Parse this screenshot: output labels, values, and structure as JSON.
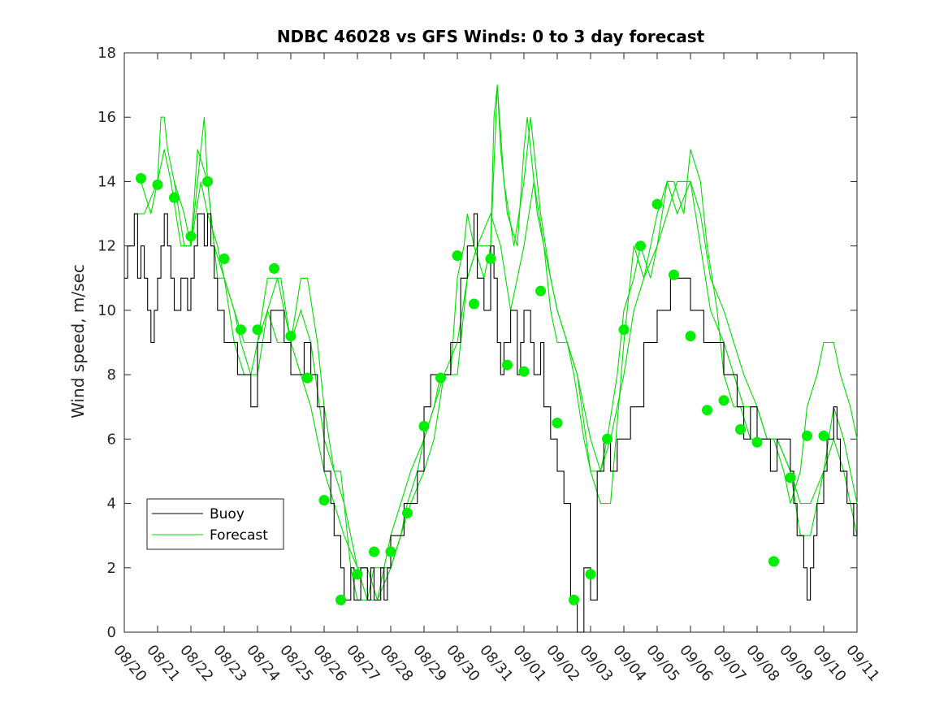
{
  "chart_data": {
    "type": "line",
    "title": "NDBC 46028 vs GFS Winds: 0 to 3 day forecast",
    "xlabel": "",
    "ylabel": "Wind speed, m/sec",
    "x_unit": "date (day index, 0 = 08/20)",
    "xlim": [
      0,
      22
    ],
    "ylim": [
      0,
      18
    ],
    "x_ticks": [
      {
        "value": 0,
        "label": "08/20"
      },
      {
        "value": 1,
        "label": "08/21"
      },
      {
        "value": 2,
        "label": "08/22"
      },
      {
        "value": 3,
        "label": "08/23"
      },
      {
        "value": 4,
        "label": "08/24"
      },
      {
        "value": 5,
        "label": "08/25"
      },
      {
        "value": 6,
        "label": "08/26"
      },
      {
        "value": 7,
        "label": "08/27"
      },
      {
        "value": 8,
        "label": "08/28"
      },
      {
        "value": 9,
        "label": "08/29"
      },
      {
        "value": 10,
        "label": "08/30"
      },
      {
        "value": 11,
        "label": "08/31"
      },
      {
        "value": 12,
        "label": "09/01"
      },
      {
        "value": 13,
        "label": "09/02"
      },
      {
        "value": 14,
        "label": "09/03"
      },
      {
        "value": 15,
        "label": "09/04"
      },
      {
        "value": 16,
        "label": "09/05"
      },
      {
        "value": 17,
        "label": "09/06"
      },
      {
        "value": 18,
        "label": "09/07"
      },
      {
        "value": 19,
        "label": "09/08"
      },
      {
        "value": 20,
        "label": "09/09"
      },
      {
        "value": 21,
        "label": "09/10"
      },
      {
        "value": 22,
        "label": "09/11"
      }
    ],
    "y_ticks": [
      {
        "value": 0,
        "label": "0"
      },
      {
        "value": 2,
        "label": "2"
      },
      {
        "value": 4,
        "label": "4"
      },
      {
        "value": 6,
        "label": "6"
      },
      {
        "value": 8,
        "label": "8"
      },
      {
        "value": 10,
        "label": "10"
      },
      {
        "value": 12,
        "label": "12"
      },
      {
        "value": 14,
        "label": "14"
      },
      {
        "value": 16,
        "label": "16"
      },
      {
        "value": 18,
        "label": "18"
      }
    ],
    "legend": {
      "position": "lower-left",
      "entries": [
        {
          "name": "Buoy",
          "color": "#000000"
        },
        {
          "name": "Forecast",
          "color": "#00dd00"
        }
      ]
    },
    "grid": false,
    "series": [
      {
        "name": "Buoy",
        "color": "#000000",
        "style": "step",
        "x": [
          0,
          0.1,
          0.2,
          0.3,
          0.4,
          0.5,
          0.6,
          0.7,
          0.8,
          0.9,
          1.0,
          1.1,
          1.2,
          1.3,
          1.4,
          1.5,
          1.6,
          1.7,
          1.8,
          1.9,
          2.0,
          2.1,
          2.2,
          2.3,
          2.4,
          2.5,
          2.6,
          2.7,
          2.8,
          2.9,
          3.0,
          3.2,
          3.4,
          3.6,
          3.8,
          4.0,
          4.2,
          4.4,
          4.6,
          4.8,
          5.0,
          5.2,
          5.4,
          5.6,
          5.8,
          6.0,
          6.1,
          6.2,
          6.3,
          6.4,
          6.5,
          6.6,
          6.7,
          6.8,
          6.9,
          7.0,
          7.1,
          7.2,
          7.3,
          7.4,
          7.5,
          7.6,
          7.7,
          7.8,
          7.9,
          8.0,
          8.2,
          8.4,
          8.6,
          8.8,
          9.0,
          9.2,
          9.4,
          9.6,
          9.8,
          10.0,
          10.1,
          10.2,
          10.3,
          10.4,
          10.5,
          10.6,
          10.7,
          10.8,
          10.9,
          11.0,
          11.1,
          11.2,
          11.3,
          11.4,
          11.5,
          11.6,
          11.7,
          11.8,
          11.9,
          12.0,
          12.1,
          12.2,
          12.3,
          12.4,
          12.5,
          12.6,
          12.7,
          12.8,
          12.9,
          13.0,
          13.2,
          13.4,
          13.6,
          13.8,
          14.0,
          14.2,
          14.4,
          14.6,
          14.8,
          15.0,
          15.2,
          15.4,
          15.6,
          15.8,
          16.0,
          16.2,
          16.4,
          16.6,
          16.8,
          17.0,
          17.2,
          17.4,
          17.6,
          17.8,
          18.0,
          18.2,
          18.4,
          18.6,
          18.8,
          19.0,
          19.2,
          19.4,
          19.6,
          19.8,
          20.0,
          20.1,
          20.2,
          20.3,
          20.4,
          20.5,
          20.6,
          20.7,
          20.8,
          20.9,
          21.0,
          21.1,
          21.2,
          21.3,
          21.4,
          21.5,
          21.6,
          21.7,
          21.8,
          21.9,
          22.0
        ],
        "y": [
          11,
          12,
          12,
          13,
          11,
          12,
          11,
          10,
          9,
          10,
          11,
          12,
          13,
          12,
          11,
          10,
          10,
          11,
          11,
          10,
          11,
          12,
          13,
          13,
          12,
          13,
          12,
          11,
          10,
          10,
          9,
          9,
          8,
          8,
          7,
          9,
          9,
          10,
          10,
          9,
          8,
          8,
          9,
          8,
          7,
          5,
          5,
          4,
          3,
          3,
          2,
          1,
          1,
          2,
          1,
          1,
          2,
          2,
          1,
          2,
          1,
          1,
          2,
          1,
          2,
          3,
          3,
          4,
          4,
          5,
          7,
          8,
          8,
          8,
          9,
          9,
          11,
          11,
          12,
          12,
          13,
          11,
          11,
          10,
          10,
          12,
          11,
          9,
          8,
          9,
          9,
          10,
          10,
          8,
          9,
          10,
          10,
          9,
          8,
          8,
          9,
          7,
          7,
          6,
          6,
          5,
          4,
          1,
          0,
          2,
          1,
          5,
          6,
          5,
          6,
          6,
          7,
          7,
          9,
          9,
          10,
          10,
          11,
          11,
          11,
          10,
          10,
          9,
          9,
          9,
          8,
          8,
          7,
          6,
          7,
          6,
          6,
          5,
          6,
          6,
          5,
          4,
          3,
          3,
          2,
          1,
          2,
          3,
          4,
          4,
          5,
          6,
          6,
          7,
          6,
          5,
          5,
          4,
          4,
          3,
          4
        ]
      },
      {
        "name": "Forecast",
        "color": "#00dd00",
        "x": [
          0.5,
          0.8,
          1.0,
          1.1,
          1.2,
          1.3,
          1.5,
          1.8,
          2.0,
          2.2,
          2.3,
          2.4,
          2.5,
          2.7,
          3.0,
          3.3,
          3.5,
          3.8,
          4.0,
          4.3,
          4.5,
          4.7,
          5.0,
          5.3,
          5.5,
          5.8,
          6.0,
          6.3,
          6.5,
          6.8,
          7.0,
          7.3,
          7.5,
          7.8,
          8.0,
          8.3,
          8.5,
          8.8,
          9.0,
          9.3,
          9.5,
          9.8,
          10.0,
          10.2,
          10.3,
          10.5,
          10.8,
          11.0,
          11.1,
          11.2,
          11.3,
          11.5,
          11.8,
          12.0,
          12.1,
          12.2,
          12.4,
          12.6,
          12.8,
          13.0,
          13.3,
          13.5,
          13.8,
          14.0,
          14.3,
          14.5,
          14.8,
          15.0,
          15.3,
          15.5,
          15.8,
          16.0,
          16.3,
          16.5,
          16.8,
          17.0,
          17.3,
          17.5,
          17.8,
          18.0,
          18.3,
          18.5,
          18.8,
          19.0,
          19.3,
          19.5,
          19.8,
          20.0,
          20.3,
          20.5,
          20.8,
          21.0,
          21.3,
          21.5,
          21.8,
          22.0
        ],
        "y": [
          14,
          13,
          14,
          16,
          16,
          15,
          14,
          13,
          12,
          14,
          15,
          16,
          14,
          12,
          11,
          10,
          9,
          8,
          9,
          11,
          11,
          11,
          9,
          11,
          11,
          9,
          7,
          5,
          5,
          2,
          1,
          1,
          2,
          2,
          2,
          3,
          4,
          5,
          6,
          7,
          8,
          8,
          11,
          12,
          13,
          12,
          11,
          12,
          16,
          17,
          15,
          13,
          12,
          15,
          16,
          15,
          13,
          12,
          10,
          9,
          9,
          8,
          6,
          5,
          5,
          6,
          8,
          10,
          11,
          12,
          11,
          12,
          14,
          14,
          13,
          15,
          14,
          12,
          10,
          8,
          7,
          7,
          6,
          6,
          6,
          6,
          5,
          4,
          5,
          7,
          8,
          9,
          9,
          8,
          7,
          6
        ]
      },
      {
        "name": "Forecast",
        "color": "#00dd00",
        "x": [
          0.3,
          0.6,
          1.0,
          1.2,
          1.4,
          1.7,
          2.0,
          2.2,
          2.5,
          2.8,
          3.0,
          3.3,
          3.6,
          4.0,
          4.3,
          4.6,
          5.0,
          5.3,
          5.6,
          6.0,
          6.3,
          6.6,
          7.0,
          7.3,
          7.6,
          8.0,
          8.3,
          8.6,
          9.0,
          9.3,
          9.6,
          10.0,
          10.3,
          10.6,
          11.0,
          11.2,
          11.4,
          11.7,
          12.0,
          12.2,
          12.5,
          12.8,
          13.0,
          13.3,
          13.6,
          14.0,
          14.3,
          14.6,
          15.0,
          15.3,
          15.6,
          16.0,
          16.3,
          16.6,
          17.0,
          17.3,
          17.6,
          18.0,
          18.3,
          18.6,
          19.0,
          19.3,
          19.6,
          20.0,
          20.3,
          20.6,
          21.0,
          21.3,
          21.6,
          22.0
        ],
        "y": [
          13,
          13,
          14,
          15,
          14,
          12,
          12,
          15,
          14,
          11,
          11,
          10,
          9,
          9,
          10,
          11,
          9,
          10,
          9,
          6,
          5,
          4,
          2,
          2,
          1,
          3,
          4,
          5,
          6,
          7,
          8,
          8,
          11,
          12,
          12,
          17,
          14,
          12,
          14,
          16,
          13,
          11,
          10,
          9,
          8,
          5,
          4,
          4,
          9,
          12,
          11,
          13,
          14,
          13,
          14,
          13,
          11,
          10,
          9,
          8,
          7,
          6,
          6,
          5,
          3,
          3,
          5,
          7,
          6,
          4
        ]
      },
      {
        "name": "Forecast",
        "color": "#00dd00",
        "x": [
          1.5,
          1.8,
          2.0,
          2.3,
          2.5,
          2.8,
          3.0,
          3.3,
          3.6,
          4.0,
          4.3,
          4.6,
          5.0,
          5.3,
          5.6,
          6.0,
          6.3,
          6.6,
          7.0,
          7.3,
          7.6,
          8.0,
          8.3,
          8.6,
          9.0,
          9.3,
          9.6,
          10.0,
          10.3,
          10.6,
          11.0,
          11.3,
          11.6,
          12.0,
          12.3,
          12.6,
          13.0,
          13.3,
          13.6,
          14.0,
          14.3,
          14.6,
          15.0,
          15.3,
          15.6,
          16.0,
          16.3,
          16.6,
          17.0,
          17.3,
          17.6,
          18.0,
          18.3,
          18.6,
          19.0,
          19.3,
          19.6,
          20.0,
          20.3,
          20.6,
          21.0,
          21.3,
          21.6,
          22.0
        ],
        "y": [
          14,
          12,
          12,
          14,
          13,
          12,
          11,
          9,
          8,
          8,
          10,
          9,
          9,
          8,
          7,
          5,
          4,
          3,
          2,
          1,
          1,
          2,
          3,
          4,
          5,
          6,
          8,
          9,
          11,
          12,
          13,
          12,
          10,
          12,
          14,
          12,
          10,
          9,
          8,
          6,
          5,
          6,
          8,
          10,
          11,
          12,
          13,
          14,
          14,
          12,
          10,
          9,
          8,
          7,
          7,
          6,
          6,
          5,
          4,
          4,
          5,
          6,
          5,
          3
        ]
      }
    ],
    "markers": {
      "name": "Forecast",
      "color": "#00ee00",
      "x": [
        0.5,
        1.0,
        1.5,
        2.0,
        2.5,
        3.0,
        3.5,
        4.0,
        4.5,
        5.0,
        5.5,
        6.0,
        6.5,
        7.0,
        7.5,
        8.0,
        8.5,
        9.0,
        9.5,
        10.0,
        10.5,
        11.0,
        11.5,
        12.0,
        12.5,
        13.0,
        13.5,
        14.0,
        14.5,
        15.0,
        15.5,
        16.0,
        16.5,
        17.0,
        17.5,
        18.0,
        18.5,
        19.0,
        19.5,
        20.0,
        20.5,
        21.0
      ],
      "y": [
        14.1,
        13.9,
        13.5,
        12.3,
        14.0,
        11.6,
        9.4,
        9.4,
        11.3,
        9.2,
        7.9,
        4.1,
        1.0,
        1.8,
        2.5,
        2.5,
        3.7,
        6.4,
        7.9,
        11.7,
        10.2,
        11.6,
        8.3,
        8.1,
        10.6,
        6.5,
        1.0,
        1.8,
        6.0,
        9.4,
        12.0,
        13.3,
        11.1,
        9.2,
        6.9,
        7.2,
        6.3,
        5.9,
        2.2,
        4.8,
        6.1,
        6.1
      ]
    }
  }
}
